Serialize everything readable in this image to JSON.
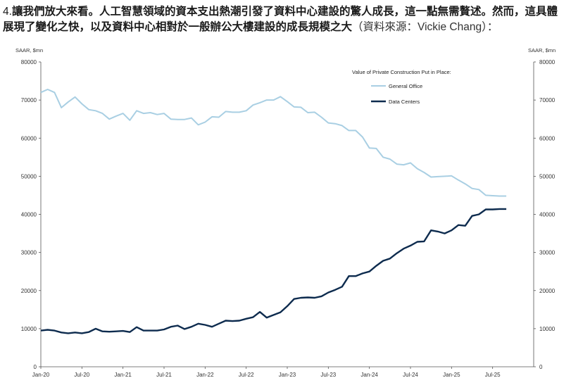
{
  "caption": {
    "prefix": "4.",
    "bold_text": "讓我們放大來看。人工智慧領域的資本支出熱潮引發了資料中心建設的驚人成長，這一點無需贅述。然而，這具體展現了變化之快，以及資料中心相對於一般辦公大樓建設的成長規模之大",
    "source": "（資料來源：Vickie Chang）："
  },
  "chart_data": {
    "type": "line",
    "title": "",
    "legend_title": "Value of Private Construction Put in Place:",
    "legend_position": "top-right",
    "ylabel_left": "SAAR, $mn",
    "ylabel_right": "SAAR, $mn",
    "ylim": [
      0,
      80000
    ],
    "yticks": [
      0,
      10000,
      20000,
      30000,
      40000,
      50000,
      60000,
      70000,
      80000
    ],
    "x_tick_labels": [
      "Jan-20",
      "Jul-20",
      "Jan-21",
      "Jul-21",
      "Jan-22",
      "Jul-22",
      "Jan-23",
      "Jul-23",
      "Jan-24",
      "Jul-24",
      "Jan-25",
      "Jul-25"
    ],
    "x_tick_months": [
      0,
      6,
      12,
      18,
      24,
      30,
      36,
      42,
      48,
      54,
      60,
      66
    ],
    "x_range_months": [
      0,
      72
    ],
    "grid": false,
    "series": [
      {
        "name": "General Office",
        "color": "#a9cfe3",
        "x_months": [
          0,
          1,
          2,
          3,
          4,
          5,
          6,
          7,
          8,
          9,
          10,
          11,
          12,
          13,
          14,
          15,
          16,
          17,
          18,
          19,
          20,
          21,
          22,
          23,
          24,
          25,
          26,
          27,
          28,
          29,
          30,
          31,
          32,
          33,
          34,
          35,
          36,
          37,
          38,
          39,
          40,
          41,
          42,
          43,
          44,
          45,
          46,
          47,
          48,
          49,
          50,
          51,
          52,
          53,
          54,
          55,
          56,
          57,
          58,
          59,
          60,
          61,
          62,
          63,
          64,
          65,
          66,
          67,
          68
        ],
        "values": [
          72000,
          72800,
          72000,
          68000,
          69500,
          70800,
          69000,
          67500,
          67200,
          66500,
          65000,
          65800,
          66500,
          64700,
          67200,
          66500,
          66700,
          66200,
          66500,
          65000,
          64900,
          64900,
          65300,
          63500,
          64200,
          65600,
          65500,
          67000,
          66800,
          66800,
          67200,
          68700,
          69300,
          70000,
          70000,
          70900,
          69600,
          68200,
          68100,
          66700,
          66800,
          65500,
          64000,
          63800,
          63300,
          62000,
          62000,
          60300,
          57400,
          57300,
          55000,
          54500,
          53200,
          53000,
          53500,
          52000,
          51000,
          49800,
          49900,
          50000,
          50100,
          49000,
          48000,
          46800,
          46500,
          45000,
          44900,
          44800,
          44800
        ]
      },
      {
        "name": "Data Centers",
        "color": "#0d2b4e",
        "x_months": [
          0,
          1,
          2,
          3,
          4,
          5,
          6,
          7,
          8,
          9,
          10,
          11,
          12,
          13,
          14,
          15,
          16,
          17,
          18,
          19,
          20,
          21,
          22,
          23,
          24,
          25,
          26,
          27,
          28,
          29,
          30,
          31,
          32,
          33,
          34,
          35,
          36,
          37,
          38,
          39,
          40,
          41,
          42,
          43,
          44,
          45,
          46,
          47,
          48,
          49,
          50,
          51,
          52,
          53,
          54,
          55,
          56,
          57,
          58,
          59,
          60,
          61,
          62,
          63,
          64,
          65,
          66,
          67,
          68
        ],
        "values": [
          9500,
          9700,
          9500,
          9000,
          8800,
          9000,
          8800,
          9100,
          10000,
          9300,
          9200,
          9300,
          9400,
          9100,
          10400,
          9500,
          9500,
          9500,
          9800,
          10500,
          10800,
          9900,
          10500,
          11300,
          11000,
          10500,
          11300,
          12100,
          12000,
          12100,
          12600,
          13000,
          14400,
          12900,
          13600,
          14300,
          15900,
          17800,
          18100,
          18200,
          18100,
          18500,
          19500,
          20200,
          21000,
          23800,
          23800,
          24500,
          25000,
          26500,
          27800,
          28400,
          29800,
          31000,
          31800,
          32800,
          32900,
          35800,
          35500,
          35000,
          35800,
          37200,
          37000,
          39600,
          40000,
          41300,
          41300,
          41400,
          41400
        ]
      }
    ]
  }
}
